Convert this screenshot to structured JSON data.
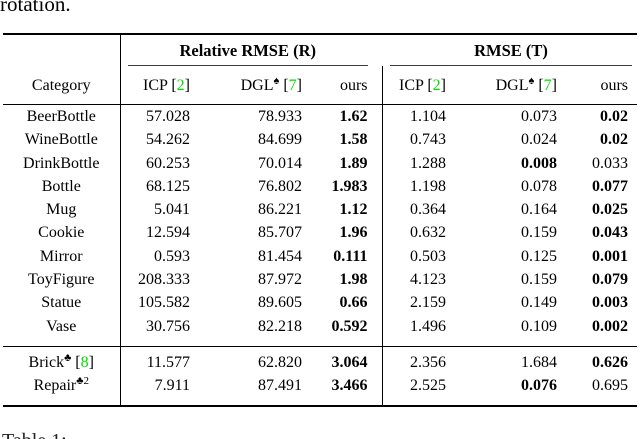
{
  "page": {
    "top_text": "rotation.",
    "caption": "Table 1:"
  },
  "punct": {
    "open": "[",
    "close": "]"
  },
  "colors": {
    "citation_green": "#00dd00"
  },
  "table": {
    "group_headers": {
      "r": "Relative RMSE (R)",
      "t": "RMSE (T)"
    },
    "category_header": "Category",
    "method_headers": {
      "r_icp": {
        "name": "ICP",
        "cite": "2"
      },
      "r_dgl": {
        "name": "DGL",
        "sup": "♠",
        "cite": "7"
      },
      "r_ours": {
        "name": "ours"
      },
      "t_icp": {
        "name": "ICP",
        "cite": "2"
      },
      "t_dgl": {
        "name": "DGL",
        "sup": "♠",
        "cite": "7"
      },
      "t_ours": {
        "name": "ours"
      }
    },
    "rows": [
      {
        "category": "BeerBottle",
        "v": [
          "57.028",
          "78.933",
          "1.62",
          "1.104",
          "0.073",
          "0.02"
        ]
      },
      {
        "category": "WineBottle",
        "v": [
          "54.262",
          "84.699",
          "1.58",
          "0.743",
          "0.024",
          "0.02"
        ]
      },
      {
        "category": "DrinkBottle",
        "v": [
          "60.253",
          "70.014",
          "1.89",
          "1.288",
          "0.008",
          "0.033"
        ]
      },
      {
        "category": "Bottle",
        "v": [
          "68.125",
          "76.802",
          "1.983",
          "1.198",
          "0.078",
          "0.077"
        ]
      },
      {
        "category": "Mug",
        "v": [
          "5.041",
          "86.221",
          "1.12",
          "0.364",
          "0.164",
          "0.025"
        ]
      },
      {
        "category": "Cookie",
        "v": [
          "12.594",
          "85.707",
          "1.96",
          "0.632",
          "0.159",
          "0.043"
        ]
      },
      {
        "category": "Mirror",
        "v": [
          "0.593",
          "81.454",
          "0.111",
          "0.503",
          "0.125",
          "0.001"
        ]
      },
      {
        "category": "ToyFigure",
        "v": [
          "208.333",
          "87.972",
          "1.98",
          "4.123",
          "0.159",
          "0.079"
        ]
      },
      {
        "category": "Statue",
        "v": [
          "105.582",
          "89.605",
          "0.66",
          "2.159",
          "0.149",
          "0.003"
        ]
      },
      {
        "category": "Vase",
        "v": [
          "30.756",
          "82.218",
          "0.592",
          "1.496",
          "0.109",
          "0.002"
        ]
      }
    ],
    "special_rows": [
      {
        "category": "Brick",
        "sup": "♣",
        "cite": "8",
        "v": [
          "11.577",
          "62.820",
          "3.064",
          "2.356",
          "1.684",
          "0.626"
        ]
      },
      {
        "category": "Repair",
        "sup": "♣",
        "sup2": "2",
        "v": [
          "7.911",
          "87.491",
          "3.466",
          "2.525",
          "0.076",
          "0.695"
        ]
      }
    ]
  }
}
